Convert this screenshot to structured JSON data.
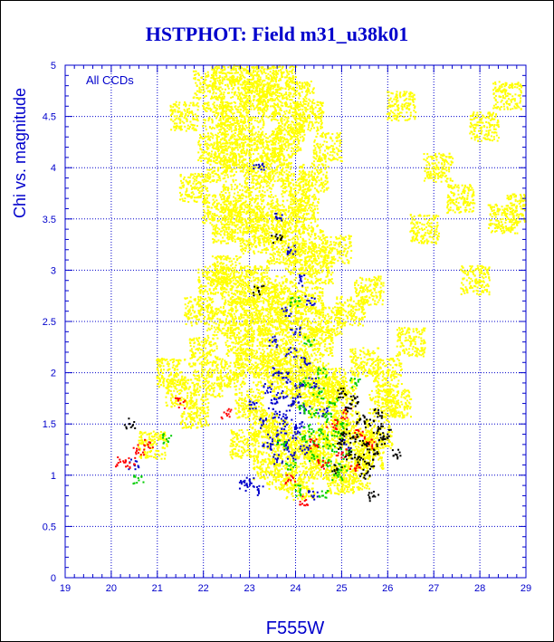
{
  "colors": {
    "axis": "#0000cc",
    "grid": "#0000cc",
    "title": "#0000cc",
    "series": {
      "yellow": "#ffff00",
      "blue": "#0000cc",
      "green": "#00cc00",
      "red": "#ff0000",
      "black": "#000000"
    }
  },
  "chart_data": {
    "type": "scatter",
    "title": "HSTPHOT: Field m31_u38k01",
    "xlabel": "F555W",
    "ylabel": "Chi vs. magnitude",
    "annotation": "All CCDs",
    "xlim": [
      19,
      29
    ],
    "ylim": [
      0,
      5
    ],
    "x_ticks": [
      "19",
      "20",
      "21",
      "22",
      "23",
      "24",
      "25",
      "26",
      "27",
      "28",
      "29"
    ],
    "y_ticks": [
      "0",
      "0.5",
      "1",
      "1.5",
      "2",
      "2.5",
      "3",
      "3.5",
      "4",
      "4.5",
      "5"
    ],
    "x_tick_values": [
      19,
      20,
      21,
      22,
      23,
      24,
      25,
      26,
      27,
      28,
      29
    ],
    "y_tick_values": [
      0,
      0.5,
      1,
      1.5,
      2,
      2.5,
      3,
      3.5,
      4,
      4.5,
      5
    ],
    "grid": true,
    "series": [
      {
        "color": "yellow",
        "values": [
          [
            22.1,
            4.8
          ],
          [
            22.3,
            4.5
          ],
          [
            22.5,
            4.9
          ],
          [
            22.7,
            4.6
          ],
          [
            22.9,
            4.95
          ],
          [
            23.1,
            4.7
          ],
          [
            23.3,
            4.85
          ],
          [
            23.5,
            4.6
          ],
          [
            23.7,
            4.9
          ],
          [
            23.9,
            4.4
          ],
          [
            24.1,
            4.7
          ],
          [
            24.3,
            4.5
          ],
          [
            22.2,
            4.2
          ],
          [
            22.4,
            4.0
          ],
          [
            22.6,
            4.3
          ],
          [
            22.8,
            4.1
          ],
          [
            23.0,
            4.35
          ],
          [
            23.2,
            3.9
          ],
          [
            23.4,
            4.2
          ],
          [
            23.6,
            4.0
          ],
          [
            23.8,
            4.25
          ],
          [
            24.0,
            3.8
          ],
          [
            24.2,
            3.6
          ],
          [
            24.4,
            3.9
          ],
          [
            22.3,
            3.6
          ],
          [
            22.5,
            3.4
          ],
          [
            22.7,
            3.7
          ],
          [
            22.9,
            3.5
          ],
          [
            23.1,
            3.3
          ],
          [
            23.3,
            3.6
          ],
          [
            23.5,
            3.4
          ],
          [
            23.7,
            3.2
          ],
          [
            23.9,
            3.5
          ],
          [
            24.1,
            3.1
          ],
          [
            24.3,
            3.3
          ],
          [
            24.5,
            3.0
          ],
          [
            22.5,
            3.0
          ],
          [
            22.7,
            2.8
          ],
          [
            22.9,
            2.6
          ],
          [
            23.1,
            2.9
          ],
          [
            23.3,
            2.7
          ],
          [
            23.5,
            2.5
          ],
          [
            23.7,
            2.8
          ],
          [
            23.9,
            2.6
          ],
          [
            24.1,
            2.4
          ],
          [
            24.3,
            2.7
          ],
          [
            24.5,
            2.3
          ],
          [
            24.7,
            2.5
          ],
          [
            22.8,
            2.3
          ],
          [
            23.0,
            2.1
          ],
          [
            23.2,
            2.4
          ],
          [
            23.4,
            2.0
          ],
          [
            23.6,
            2.2
          ],
          [
            23.8,
            1.9
          ],
          [
            24.0,
            2.1
          ],
          [
            24.2,
            1.8
          ],
          [
            24.4,
            2.0
          ],
          [
            24.6,
            1.7
          ],
          [
            24.8,
            1.9
          ],
          [
            25.0,
            1.8
          ],
          [
            23.0,
            1.7
          ],
          [
            23.3,
            1.5
          ],
          [
            23.6,
            1.4
          ],
          [
            23.9,
            1.3
          ],
          [
            24.2,
            1.2
          ],
          [
            24.5,
            1.3
          ],
          [
            24.8,
            1.4
          ],
          [
            25.1,
            1.5
          ],
          [
            25.4,
            1.3
          ],
          [
            25.6,
            1.2
          ],
          [
            25.8,
            1.4
          ],
          [
            23.4,
            1.1
          ],
          [
            21.3,
            2.0
          ],
          [
            21.5,
            1.8
          ],
          [
            20.9,
            1.3
          ],
          [
            21.8,
            1.6
          ],
          [
            22.0,
            2.2
          ],
          [
            21.9,
            2.6
          ],
          [
            22.1,
            1.9
          ],
          [
            25.2,
            2.6
          ],
          [
            25.5,
            2.1
          ],
          [
            26.2,
            1.7
          ],
          [
            26.5,
            2.3
          ],
          [
            27.1,
            4.0
          ],
          [
            27.6,
            3.7
          ],
          [
            28.1,
            4.4
          ],
          [
            28.6,
            4.7
          ],
          [
            26.8,
            3.4
          ],
          [
            27.9,
            2.9
          ],
          [
            28.5,
            3.5
          ],
          [
            26.3,
            4.6
          ],
          [
            24.9,
            3.2
          ],
          [
            25.6,
            2.8
          ],
          [
            21.6,
            4.5
          ],
          [
            21.8,
            3.8
          ],
          [
            28.9,
            3.6
          ],
          [
            22.6,
            2.0
          ],
          [
            22.4,
            2.5
          ],
          [
            22.2,
            2.9
          ],
          [
            24.6,
            1.1
          ],
          [
            25.3,
            1.0
          ],
          [
            25.0,
            0.95
          ],
          [
            23.7,
            1.0
          ],
          [
            24.1,
            0.9
          ],
          [
            22.9,
            1.3
          ],
          [
            25.9,
            1.7
          ],
          [
            26.0,
            2.0
          ],
          [
            24.7,
            4.2
          ]
        ]
      },
      {
        "color": "blue",
        "values": [
          [
            23.2,
            4.0
          ],
          [
            23.6,
            3.5
          ],
          [
            23.9,
            3.2
          ],
          [
            24.1,
            2.9
          ],
          [
            23.8,
            2.6
          ],
          [
            24.0,
            2.4
          ],
          [
            23.5,
            2.3
          ],
          [
            23.9,
            2.2
          ],
          [
            24.2,
            2.1
          ],
          [
            23.6,
            2.0
          ],
          [
            23.8,
            1.95
          ],
          [
            24.1,
            1.9
          ],
          [
            23.4,
            1.85
          ],
          [
            23.7,
            1.8
          ],
          [
            24.0,
            1.75
          ],
          [
            23.5,
            1.7
          ],
          [
            23.9,
            1.68
          ],
          [
            24.2,
            1.65
          ],
          [
            23.6,
            1.6
          ],
          [
            23.8,
            1.55
          ],
          [
            24.1,
            1.5
          ],
          [
            23.3,
            1.5
          ],
          [
            23.7,
            1.45
          ],
          [
            24.0,
            1.4
          ],
          [
            23.5,
            1.35
          ],
          [
            23.8,
            1.3
          ],
          [
            23.4,
            1.28
          ],
          [
            24.2,
            1.25
          ],
          [
            23.9,
            1.2
          ],
          [
            23.6,
            1.15
          ],
          [
            22.9,
            0.9
          ],
          [
            23.2,
            0.85
          ],
          [
            24.4,
            0.8
          ],
          [
            23.1,
            1.7
          ],
          [
            24.4,
            1.9
          ],
          [
            24.3,
            2.7
          ],
          [
            23.0,
            0.95
          ],
          [
            25.1,
            1.3
          ],
          [
            24.6,
            1.6
          ],
          [
            20.5,
            1.1
          ]
        ]
      },
      {
        "color": "green",
        "values": [
          [
            24.0,
            2.7
          ],
          [
            24.3,
            2.3
          ],
          [
            24.6,
            2.0
          ],
          [
            24.2,
            1.9
          ],
          [
            24.5,
            1.8
          ],
          [
            24.8,
            1.7
          ],
          [
            24.1,
            1.65
          ],
          [
            24.4,
            1.6
          ],
          [
            24.7,
            1.55
          ],
          [
            25.0,
            1.5
          ],
          [
            24.3,
            1.45
          ],
          [
            24.6,
            1.4
          ],
          [
            24.9,
            1.38
          ],
          [
            24.2,
            1.35
          ],
          [
            24.5,
            1.3
          ],
          [
            24.8,
            1.25
          ],
          [
            25.1,
            1.2
          ],
          [
            24.4,
            1.18
          ],
          [
            24.7,
            1.12
          ],
          [
            25.0,
            1.08
          ],
          [
            23.9,
            1.1
          ],
          [
            24.1,
            0.85
          ],
          [
            24.6,
            0.8
          ],
          [
            21.2,
            1.35
          ],
          [
            20.6,
            0.95
          ],
          [
            25.3,
            1.9
          ],
          [
            23.7,
            1.3
          ],
          [
            24.9,
            1.0
          ]
        ]
      },
      {
        "color": "red",
        "values": [
          [
            20.2,
            1.13
          ],
          [
            20.4,
            1.12
          ],
          [
            20.6,
            1.25
          ],
          [
            20.8,
            1.3
          ],
          [
            24.4,
            1.3
          ],
          [
            24.8,
            1.5
          ],
          [
            25.1,
            1.6
          ],
          [
            25.4,
            1.4
          ],
          [
            25.0,
            1.2
          ],
          [
            24.6,
            1.1
          ],
          [
            25.3,
            1.05
          ],
          [
            23.9,
            0.95
          ],
          [
            24.2,
            0.75
          ],
          [
            25.6,
            1.3
          ],
          [
            22.5,
            1.6
          ],
          [
            21.5,
            1.7
          ]
        ]
      },
      {
        "color": "black",
        "values": [
          [
            20.4,
            1.5
          ],
          [
            23.2,
            2.8
          ],
          [
            23.6,
            3.3
          ],
          [
            25.0,
            1.8
          ],
          [
            25.2,
            1.65
          ],
          [
            25.4,
            1.55
          ],
          [
            25.6,
            1.5
          ],
          [
            25.8,
            1.45
          ],
          [
            25.1,
            1.4
          ],
          [
            25.3,
            1.35
          ],
          [
            25.5,
            1.3
          ],
          [
            25.7,
            1.25
          ],
          [
            25.9,
            1.35
          ],
          [
            25.2,
            1.2
          ],
          [
            25.4,
            1.15
          ],
          [
            25.6,
            1.1
          ],
          [
            25.0,
            1.3
          ],
          [
            25.8,
            1.6
          ],
          [
            26.0,
            1.4
          ],
          [
            25.3,
            1.75
          ],
          [
            25.7,
            0.8
          ],
          [
            26.2,
            1.2
          ],
          [
            24.9,
            1.05
          ],
          [
            25.5,
            1.0
          ]
        ]
      }
    ]
  }
}
